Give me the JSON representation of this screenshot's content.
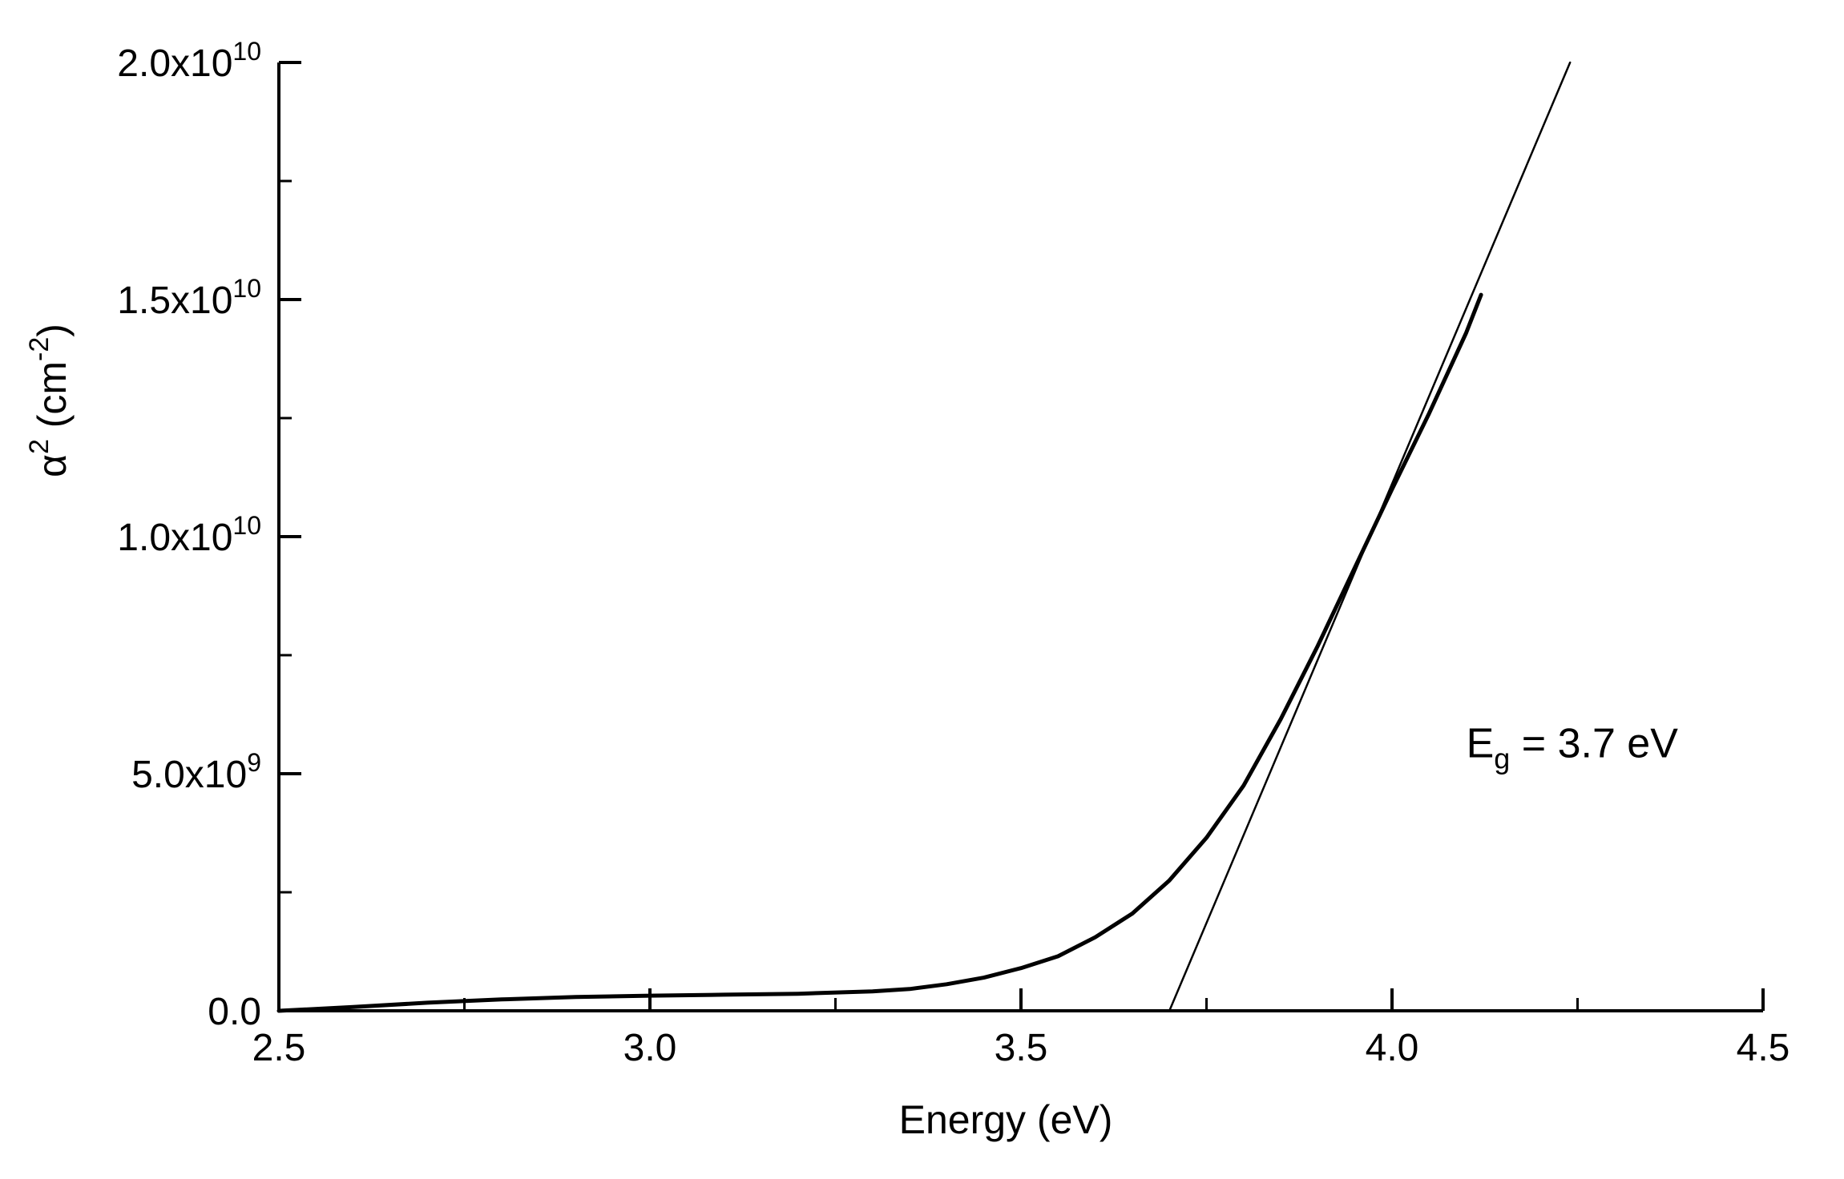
{
  "chart_data": {
    "type": "line",
    "title": "",
    "xlabel": "Energy (eV)",
    "ylabel_base": "α",
    "ylabel_exp": "2",
    "ylabel_unit_open": " (cm",
    "ylabel_unit_exp": "-2",
    "ylabel_unit_close": ")",
    "xlim": [
      2.5,
      4.5
    ],
    "ylim": [
      0,
      20000000000
    ],
    "grid": false,
    "legend": "none",
    "x_ticks": [
      {
        "value": 2.5,
        "label": "2.5"
      },
      {
        "value": 3.0,
        "label": "3.0"
      },
      {
        "value": 3.5,
        "label": "3.5"
      },
      {
        "value": 4.0,
        "label": "4.0"
      },
      {
        "value": 4.5,
        "label": "4.5"
      }
    ],
    "x_minor_ticks": [
      2.75,
      3.25,
      3.75,
      4.25
    ],
    "y_ticks": [
      {
        "value": 0,
        "mantissa": "0.0",
        "exponent": ""
      },
      {
        "value": 5000000000,
        "mantissa": "5.0x10",
        "exponent": "9"
      },
      {
        "value": 10000000000,
        "mantissa": "1.0x10",
        "exponent": "10"
      },
      {
        "value": 15000000000,
        "mantissa": "1.5x10",
        "exponent": "10"
      },
      {
        "value": 20000000000,
        "mantissa": "2.0x10",
        "exponent": "10"
      }
    ],
    "y_minor_ticks": [
      2500000000,
      7500000000,
      12500000000,
      17500000000
    ],
    "series": [
      {
        "style": "thick",
        "color": "#000000",
        "x": [
          2.5,
          2.6,
          2.7,
          2.8,
          2.9,
          3.0,
          3.1,
          3.2,
          3.3,
          3.35,
          3.4,
          3.45,
          3.5,
          3.55,
          3.6,
          3.65,
          3.7,
          3.75,
          3.8,
          3.85,
          3.9,
          3.95,
          4.0,
          4.05,
          4.1,
          4.12
        ],
        "y": [
          0,
          80000000,
          170000000,
          240000000,
          290000000,
          320000000,
          340000000,
          360000000,
          410000000,
          460000000,
          560000000,
          700000000,
          900000000,
          1150000000,
          1550000000,
          2050000000,
          2750000000,
          3650000000,
          4750000000,
          6150000000,
          7700000000,
          9350000000,
          11000000000,
          12600000000,
          14300000000,
          15100000000
        ]
      },
      {
        "style": "thin",
        "color": "#000000",
        "x": [
          3.7,
          4.24
        ],
        "y": [
          0,
          20000000000
        ]
      }
    ],
    "annotation": {
      "main": "E",
      "sub": "g",
      "rest": " = 3.7 eV",
      "x": 4.1,
      "y": 5350000000
    }
  }
}
